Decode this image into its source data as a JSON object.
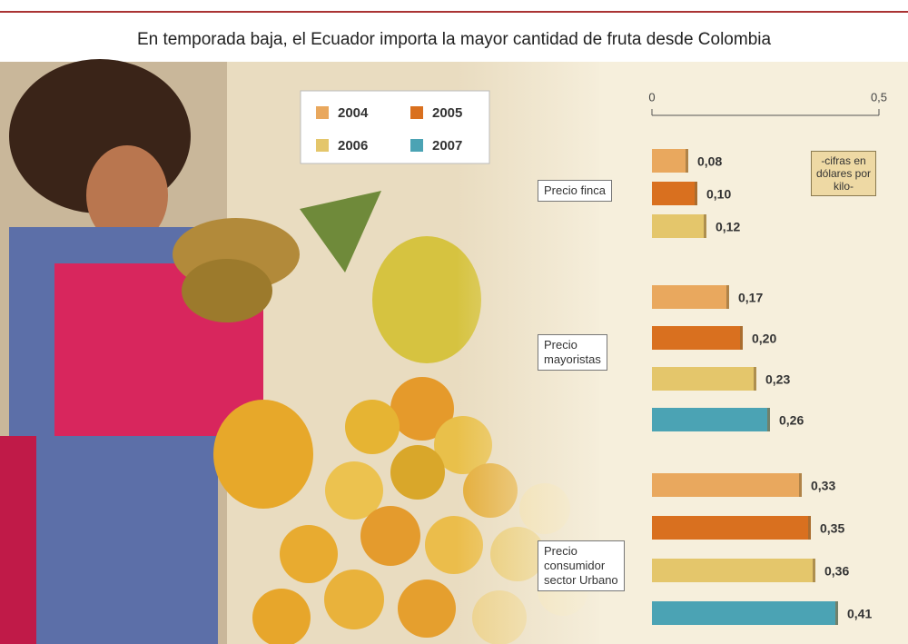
{
  "chart_data": {
    "type": "bar",
    "orientation": "horizontal",
    "title": "En temporada baja, el Ecuador importa la mayor cantidad de fruta desde Colombia",
    "annotation": "-cifras en dólares por kilo-",
    "categories": [
      "Precio finca",
      "Precio\nmayoristas",
      "Precio\nconsumidor\nsector Urbano"
    ],
    "series": [
      {
        "name": "2004",
        "color": "#e9a85e",
        "values": [
          0.08,
          0.17,
          0.33
        ],
        "value_labels": [
          "0,08",
          "0,17",
          "0,33"
        ]
      },
      {
        "name": "2005",
        "color": "#d9701f",
        "values": [
          0.1,
          0.2,
          0.35
        ],
        "value_labels": [
          "0,10",
          "0,20",
          "0,35"
        ]
      },
      {
        "name": "2006",
        "color": "#e4c66b",
        "values": [
          0.12,
          0.23,
          0.36
        ],
        "value_labels": [
          "0,12",
          "0,23",
          "0,36"
        ]
      },
      {
        "name": "2007",
        "color": "#4ba3b4",
        "values": [
          null,
          0.26,
          0.41
        ],
        "value_labels": [
          null,
          "0,26",
          "0,41"
        ]
      }
    ],
    "xlim": [
      0,
      0.5
    ],
    "xticks": [
      0,
      {
        "value": 0.5,
        "label": "0,5"
      }
    ]
  }
}
